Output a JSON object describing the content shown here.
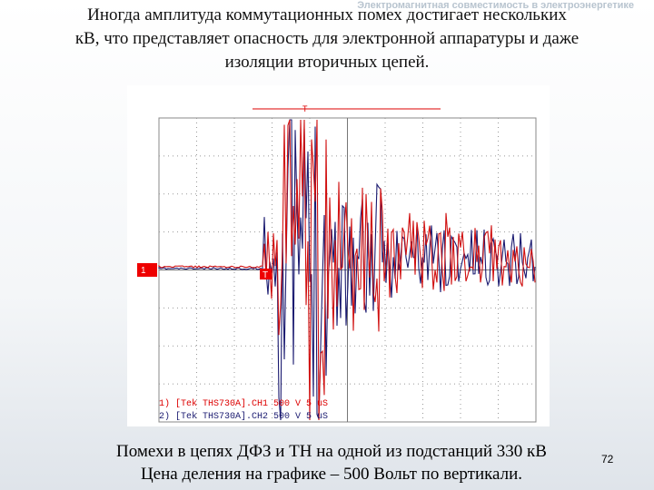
{
  "header": {
    "course": "Электромагнитная совместимость в электроэнергетике",
    "title_lines": [
      "Иногда амплитуда коммутационных помех достигает нескольких",
      "кВ, что представляет опасность для электронной аппаратуры и даже",
      "изоляции вторичных цепей."
    ]
  },
  "scope": {
    "channel_marker": "1",
    "trigger_marker": "T",
    "trigger_pos_marker": "T",
    "channels": [
      "1) [Tek THS730A].CH1 500 V 5 uS",
      "2) [Tek THS730A].CH2 500 V 5 uS"
    ]
  },
  "caption": {
    "lines": [
      "Помехи в цепях ДФЗ и ТН на одной из подстанций 330 кВ",
      "Цена деления на графике – 500 Вольт по вертикали."
    ]
  },
  "page_number": "72"
}
